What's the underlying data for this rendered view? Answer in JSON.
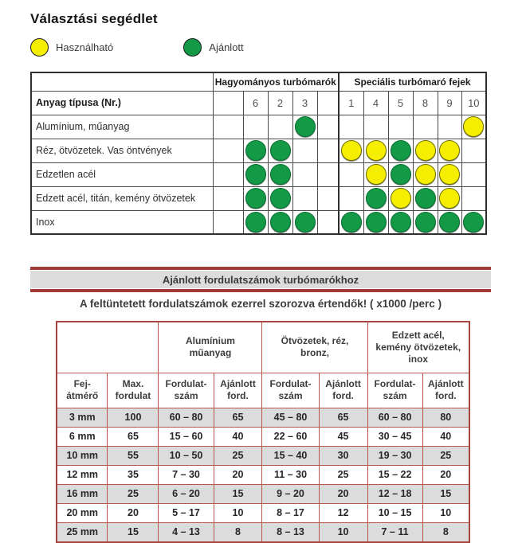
{
  "page": {
    "title": "Választási segédlet"
  },
  "legend": {
    "usable": {
      "label": "Használható",
      "color": "#f6ee00"
    },
    "recommended": {
      "label": "Ajánlott",
      "color": "#149a46"
    }
  },
  "selection_table": {
    "group1": "Hagyományos turbómarók",
    "group2": "Speciális turbómaró fejek",
    "row_header": "Anyag típusa (Nr.)",
    "columns_group1": [
      "6",
      "2",
      "3"
    ],
    "columns_group2": [
      "1",
      "4",
      "5",
      "8",
      "9",
      "10"
    ],
    "dot_legend": {
      "G": "recommended",
      "Y": "usable"
    },
    "rows": [
      {
        "label": "Alumínium, műanyag",
        "cells": [
          "",
          "",
          "G",
          "",
          "",
          "",
          "",
          "",
          "Y"
        ]
      },
      {
        "label": "Réz, ötvözetek. Vas öntvények",
        "cells": [
          "G",
          "G",
          "",
          "Y",
          "Y",
          "G",
          "Y",
          "Y",
          ""
        ]
      },
      {
        "label": "Edzetlen acél",
        "cells": [
          "G",
          "G",
          "",
          "",
          "Y",
          "G",
          "Y",
          "Y",
          ""
        ]
      },
      {
        "label": "Edzett acél, titán, kemény ötvözetek",
        "cells": [
          "G",
          "G",
          "",
          "",
          "G",
          "Y",
          "G",
          "Y",
          ""
        ]
      },
      {
        "label": "Inox",
        "cells": [
          "G",
          "G",
          "G",
          "G",
          "G",
          "G",
          "G",
          "G",
          "G"
        ]
      }
    ]
  },
  "speed_section": {
    "banner": "Ajánlott fordulatszámok turbómarókhoz",
    "note": "A feltüntetett fordulatszámok ezerrel szorozva értendők! ( x1000 /perc )",
    "banner_color": "#a23c36",
    "table": {
      "groups": [
        "Alumínium\nműanyag",
        "Ötvözetek, réz,\nbronz,",
        "Edzett acél,\nkemény ötvözetek,\ninox"
      ],
      "col_diameter": "Fej-\nátmérő",
      "col_max": "Max.\nfordulat",
      "sub_speed": "Fordulat-\nszám",
      "sub_recommended": "Ajánlott\nford.",
      "rows": [
        [
          "3 mm",
          "100",
          "60 – 80",
          "65",
          "45 – 80",
          "65",
          "60 – 80",
          "80"
        ],
        [
          "6 mm",
          "65",
          "15 – 60",
          "40",
          "22 – 60",
          "45",
          "30 – 45",
          "40"
        ],
        [
          "10 mm",
          "55",
          "10 – 50",
          "25",
          "15 – 40",
          "30",
          "19 – 30",
          "25"
        ],
        [
          "12 mm",
          "35",
          "7 – 30",
          "20",
          "11 – 30",
          "25",
          "15 – 22",
          "20"
        ],
        [
          "16 mm",
          "25",
          "6 – 20",
          "15",
          "9 – 20",
          "20",
          "12 – 18",
          "15"
        ],
        [
          "20 mm",
          "20",
          "5 – 17",
          "10",
          "8 – 17",
          "12",
          "10 – 15",
          "10"
        ],
        [
          "25 mm",
          "15",
          "4 – 13",
          "8",
          "8 – 13",
          "10",
          "7 – 11",
          "8"
        ]
      ]
    }
  }
}
